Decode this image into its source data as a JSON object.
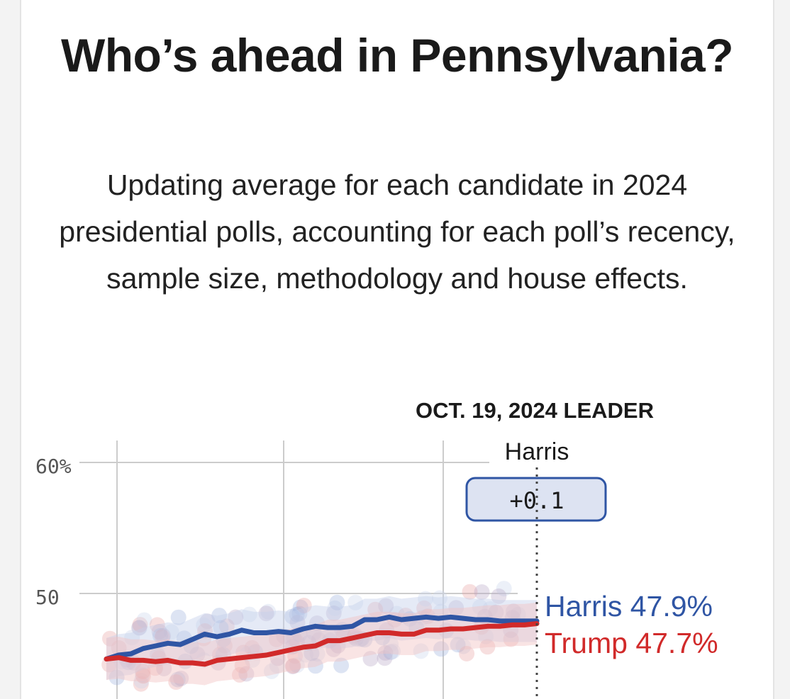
{
  "title": "Who’s ahead in Pennsylvania?",
  "subtitle": "Updating average for each candidate in 2024 presidential polls, accounting for each poll’s recency, sample size, methodology and house effects.",
  "colors": {
    "harris": "#2f55a4",
    "trump": "#d12a2a",
    "grid": "#cccccc",
    "leader_box_fill": "#dde3f2"
  },
  "chart_data": {
    "type": "line",
    "title": "",
    "xlabel": "",
    "ylabel": "",
    "y_tick_labels": [
      "60%",
      "50"
    ],
    "y_ticks": [
      60,
      50
    ],
    "ylim": [
      44,
      61
    ],
    "grid": true,
    "legend": "end-of-line labels",
    "leader": {
      "heading": "OCT. 19, 2024 LEADER",
      "name": "Harris",
      "margin": "+0.1",
      "date_label": "Oct. 19, 2024"
    },
    "series": [
      {
        "name": "Harris",
        "end_label": "Harris 47.9%",
        "values": [
          45.0,
          45.3,
          45.4,
          45.8,
          46.0,
          46.2,
          46.1,
          46.5,
          46.9,
          46.7,
          46.9,
          47.2,
          47.0,
          47.0,
          47.1,
          47.0,
          47.3,
          47.5,
          47.4,
          47.4,
          47.5,
          48.0,
          48.0,
          48.2,
          48.0,
          48.1,
          48.2,
          48.1,
          48.2,
          48.1,
          48.0,
          48.0,
          47.9,
          47.9,
          47.9,
          47.9
        ]
      },
      {
        "name": "Trump",
        "end_label": "Trump 47.7%",
        "values": [
          45.0,
          45.1,
          44.9,
          44.9,
          44.8,
          44.9,
          44.7,
          44.7,
          44.6,
          44.9,
          45.0,
          45.1,
          45.2,
          45.3,
          45.5,
          45.7,
          45.9,
          46.0,
          46.4,
          46.4,
          46.6,
          46.8,
          47.0,
          47.0,
          46.9,
          46.9,
          47.2,
          47.2,
          47.3,
          47.3,
          47.4,
          47.5,
          47.5,
          47.6,
          47.6,
          47.7
        ]
      }
    ]
  }
}
